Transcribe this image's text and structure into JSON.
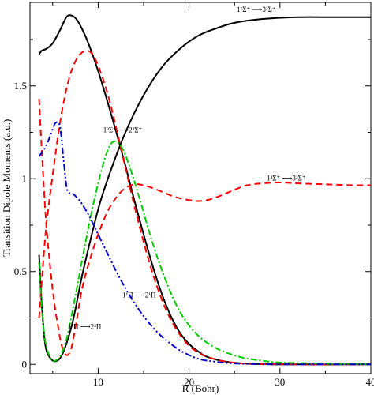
{
  "chart_data": {
    "type": "line",
    "title": "",
    "xlabel": "R (Bohr)",
    "ylabel": "Transition Dipole Moments (a.u.)",
    "xlim": [
      2.5,
      40
    ],
    "ylim": [
      -0.05,
      1.95
    ],
    "x_ticks": [
      10,
      20,
      30,
      40
    ],
    "y_ticks": [
      0,
      0.5,
      1,
      1.5
    ],
    "x_tick_labels": [
      "10",
      "20",
      "30",
      "40"
    ],
    "y_tick_labels": [
      "0",
      "0.5",
      "1",
      "1.5"
    ],
    "grid": false,
    "legend": "none",
    "series": [
      {
        "key": "s1",
        "color": "#000000",
        "dash": "solid",
        "points": [
          [
            3.5,
            0.59
          ],
          [
            3.8,
            0.32
          ],
          [
            4.2,
            0.1
          ],
          [
            4.8,
            0.03
          ],
          [
            5.5,
            0.02
          ],
          [
            6.2,
            0.07
          ],
          [
            7.2,
            0.23
          ],
          [
            8.2,
            0.47
          ],
          [
            9.2,
            0.68
          ],
          [
            10.2,
            0.87
          ],
          [
            11.5,
            1.06
          ],
          [
            13,
            1.25
          ],
          [
            15,
            1.45
          ],
          [
            17,
            1.6
          ],
          [
            19,
            1.7
          ],
          [
            21,
            1.77
          ],
          [
            23,
            1.81
          ],
          [
            25,
            1.84
          ],
          [
            28,
            1.86
          ],
          [
            32,
            1.87
          ],
          [
            36,
            1.87
          ],
          [
            40,
            1.87
          ]
        ]
      },
      {
        "key": "s2",
        "color": "#000000",
        "dash": "solid",
        "points": [
          [
            3.5,
            1.67
          ],
          [
            3.8,
            1.69
          ],
          [
            4.3,
            1.7
          ],
          [
            5,
            1.73
          ],
          [
            5.8,
            1.8
          ],
          [
            6.5,
            1.87
          ],
          [
            7,
            1.88
          ],
          [
            7.6,
            1.86
          ],
          [
            8.3,
            1.8
          ],
          [
            9,
            1.72
          ],
          [
            10,
            1.58
          ],
          [
            11,
            1.42
          ],
          [
            12,
            1.25
          ],
          [
            13,
            1.07
          ],
          [
            14,
            0.88
          ],
          [
            15,
            0.7
          ],
          [
            16,
            0.53
          ],
          [
            17,
            0.38
          ],
          [
            18,
            0.26
          ],
          [
            19,
            0.17
          ],
          [
            20,
            0.11
          ],
          [
            21,
            0.07
          ],
          [
            22,
            0.04
          ],
          [
            24,
            0.015
          ],
          [
            26,
            0.005
          ],
          [
            30,
            0
          ],
          [
            40,
            0
          ]
        ]
      },
      {
        "key": "s3",
        "color": "#ff0000",
        "dash": "8 5",
        "points": [
          [
            3.5,
            1.43
          ],
          [
            3.8,
            1.15
          ],
          [
            4.3,
            0.75
          ],
          [
            5,
            0.4
          ],
          [
            5.6,
            0.2
          ],
          [
            6,
            0.1
          ],
          [
            6.5,
            0.05
          ],
          [
            7,
            0.08
          ],
          [
            7.5,
            0.2
          ],
          [
            8.2,
            0.4
          ],
          [
            9,
            0.55
          ],
          [
            10,
            0.7
          ],
          [
            11,
            0.82
          ],
          [
            12,
            0.9
          ],
          [
            13,
            0.95
          ],
          [
            14,
            0.97
          ],
          [
            15,
            0.965
          ],
          [
            16,
            0.95
          ],
          [
            17,
            0.93
          ],
          [
            18,
            0.91
          ],
          [
            19,
            0.895
          ],
          [
            20,
            0.885
          ],
          [
            21,
            0.88
          ],
          [
            22,
            0.885
          ],
          [
            23,
            0.9
          ],
          [
            24,
            0.92
          ],
          [
            25,
            0.94
          ],
          [
            26,
            0.96
          ],
          [
            27,
            0.97
          ],
          [
            28,
            0.975
          ],
          [
            30,
            0.98
          ],
          [
            32,
            0.975
          ],
          [
            35,
            0.97
          ],
          [
            38,
            0.965
          ],
          [
            40,
            0.965
          ]
        ]
      },
      {
        "key": "s4",
        "color": "#ff0000",
        "dash": "8 5",
        "points": [
          [
            3.5,
            0.25
          ],
          [
            3.8,
            0.45
          ],
          [
            4.3,
            0.75
          ],
          [
            5,
            1.02
          ],
          [
            5.8,
            1.3
          ],
          [
            6.5,
            1.48
          ],
          [
            7.2,
            1.6
          ],
          [
            8,
            1.67
          ],
          [
            8.8,
            1.69
          ],
          [
            9.5,
            1.66
          ],
          [
            10.3,
            1.57
          ],
          [
            11.2,
            1.43
          ],
          [
            12,
            1.27
          ],
          [
            13,
            1.06
          ],
          [
            14,
            0.85
          ],
          [
            15,
            0.66
          ],
          [
            16,
            0.49
          ],
          [
            17,
            0.35
          ],
          [
            18,
            0.24
          ],
          [
            19,
            0.16
          ],
          [
            20,
            0.1
          ],
          [
            21,
            0.065
          ],
          [
            22,
            0.04
          ],
          [
            24,
            0.015
          ],
          [
            26,
            0.005
          ],
          [
            30,
            0
          ],
          [
            40,
            0
          ]
        ]
      },
      {
        "key": "s5",
        "color": "#00cc00",
        "dash": "8 3 2 3",
        "points": [
          [
            3.5,
            0.55
          ],
          [
            3.8,
            0.3
          ],
          [
            4.2,
            0.12
          ],
          [
            4.8,
            0.03
          ],
          [
            5.3,
            0.02
          ],
          [
            5.9,
            0.05
          ],
          [
            6.6,
            0.15
          ],
          [
            7.5,
            0.37
          ],
          [
            8.5,
            0.63
          ],
          [
            9.5,
            0.87
          ],
          [
            10.5,
            1.07
          ],
          [
            11.3,
            1.18
          ],
          [
            12,
            1.2
          ],
          [
            12.8,
            1.15
          ],
          [
            13.7,
            1.03
          ],
          [
            14.7,
            0.87
          ],
          [
            15.7,
            0.7
          ],
          [
            16.7,
            0.55
          ],
          [
            17.7,
            0.42
          ],
          [
            18.7,
            0.31
          ],
          [
            19.7,
            0.23
          ],
          [
            21,
            0.155
          ],
          [
            22.5,
            0.1
          ],
          [
            24,
            0.065
          ],
          [
            26,
            0.035
          ],
          [
            28,
            0.02
          ],
          [
            30,
            0.01
          ],
          [
            34,
            0.005
          ],
          [
            40,
            0
          ]
        ]
      },
      {
        "key": "s6",
        "color": "#0000cc",
        "dash": "8 3 2 3 2 3",
        "points": [
          [
            3.5,
            1.12
          ],
          [
            3.8,
            1.14
          ],
          [
            4.3,
            1.18
          ],
          [
            4.8,
            1.24
          ],
          [
            5.3,
            1.3
          ],
          [
            5.8,
            1.28
          ],
          [
            6.2,
            1.1
          ],
          [
            6.6,
            0.94
          ],
          [
            7.2,
            0.92
          ],
          [
            8,
            0.88
          ],
          [
            9,
            0.8
          ],
          [
            10,
            0.7
          ],
          [
            11,
            0.6
          ],
          [
            12,
            0.5
          ],
          [
            13,
            0.41
          ],
          [
            14,
            0.33
          ],
          [
            15,
            0.26
          ],
          [
            16,
            0.2
          ],
          [
            17,
            0.15
          ],
          [
            18,
            0.11
          ],
          [
            19,
            0.075
          ],
          [
            20,
            0.05
          ],
          [
            21,
            0.03
          ],
          [
            22,
            0.02
          ],
          [
            24,
            0.008
          ],
          [
            26,
            0.003
          ],
          [
            30,
            0
          ],
          [
            40,
            0
          ]
        ]
      }
    ],
    "annotations": [
      {
        "key": "a1",
        "text": "1¹Σ⁺ ⟶3¹Σ⁺",
        "at": [
          27.4,
          1.9
        ]
      },
      {
        "key": "a2",
        "text": "1³Σ⁺ ⟶3³Σ⁺",
        "at": [
          30.7,
          0.99
        ]
      },
      {
        "key": "a3",
        "text": "1³Σ⁺ ⟶2³Σ⁺",
        "at": [
          12.7,
          1.25
        ]
      },
      {
        "key": "a4",
        "text": "1¹Π ⟶2¹Π",
        "at": [
          14.5,
          0.36
        ]
      },
      {
        "key": "a5",
        "text": "1³Π ⟶2³Π",
        "at": [
          8.5,
          0.19
        ]
      }
    ]
  }
}
